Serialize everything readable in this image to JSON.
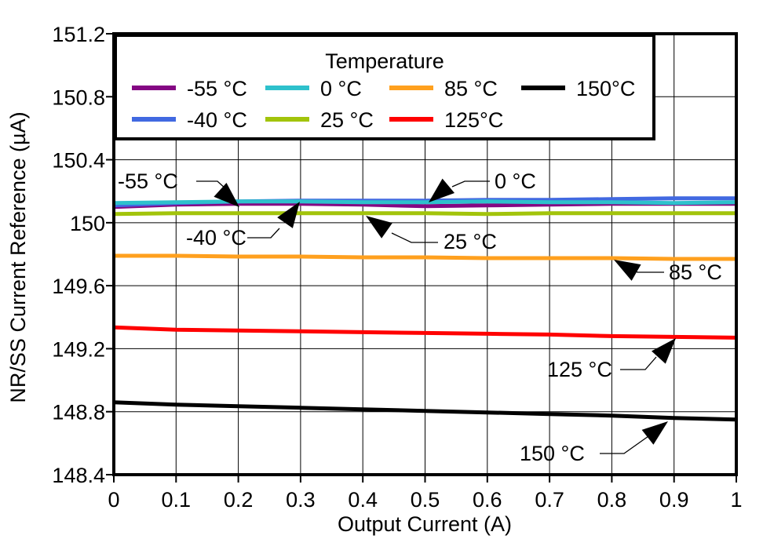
{
  "page": {
    "background": "#ffffff",
    "text_color": "#000000"
  },
  "chart_data": {
    "type": "line",
    "title": "",
    "xlabel": "Output Current (A)",
    "ylabel": "NR/SS Current Reference (µA)",
    "xlim": [
      0,
      1
    ],
    "ylim": [
      148.4,
      151.2
    ],
    "grid": true,
    "xticks": [
      "0",
      "0.1",
      "0.2",
      "0.3",
      "0.4",
      "0.5",
      "0.6",
      "0.7",
      "0.8",
      "0.9",
      "1"
    ],
    "yticks": [
      "148.4",
      "148.8",
      "149.2",
      "149.6",
      "150",
      "150.4",
      "150.8",
      "151.2"
    ],
    "legend": {
      "title": "Temperature",
      "position": "top-inside"
    },
    "x": [
      0,
      0.1,
      0.2,
      0.3,
      0.4,
      0.5,
      0.6,
      0.7,
      0.8,
      0.9,
      1
    ],
    "series": [
      {
        "name": "-55 °C",
        "color": "#840783",
        "values": [
          150.1,
          150.115,
          150.12,
          150.12,
          150.115,
          150.105,
          150.11,
          150.115,
          150.12,
          150.12,
          150.12
        ]
      },
      {
        "name": "-40 °C",
        "color": "#4169E1",
        "values": [
          150.11,
          150.125,
          150.135,
          150.14,
          150.14,
          150.14,
          150.145,
          150.145,
          150.15,
          150.155,
          150.155
        ]
      },
      {
        "name": "0 °C",
        "color": "#2EC1CC",
        "values": [
          150.125,
          150.13,
          150.135,
          150.135,
          150.13,
          150.13,
          150.135,
          150.13,
          150.13,
          150.125,
          150.13
        ]
      },
      {
        "name": "25 °C",
        "color": "#A2C40B",
        "values": [
          150.055,
          150.06,
          150.06,
          150.06,
          150.06,
          150.06,
          150.055,
          150.06,
          150.06,
          150.06,
          150.06
        ]
      },
      {
        "name": "85 °C",
        "color": "#FFA01E",
        "values": [
          149.79,
          149.79,
          149.785,
          149.785,
          149.78,
          149.78,
          149.775,
          149.775,
          149.775,
          149.77,
          149.77
        ]
      },
      {
        "name": "125°C",
        "color": "#FF0000",
        "values": [
          149.335,
          149.32,
          149.315,
          149.31,
          149.305,
          149.3,
          149.295,
          149.29,
          149.28,
          149.275,
          149.27
        ]
      },
      {
        "name": "150°C",
        "color": "#000000",
        "values": [
          148.86,
          148.845,
          148.835,
          148.825,
          148.815,
          148.805,
          148.795,
          148.785,
          148.775,
          148.76,
          148.75
        ]
      }
    ],
    "annotations": [
      {
        "text": "-55 °C"
      },
      {
        "text": "0 °C"
      },
      {
        "text": "-40 °C"
      },
      {
        "text": "25 °C"
      },
      {
        "text": "85 °C"
      },
      {
        "text": "125 °C"
      },
      {
        "text": "150 °C"
      }
    ]
  }
}
